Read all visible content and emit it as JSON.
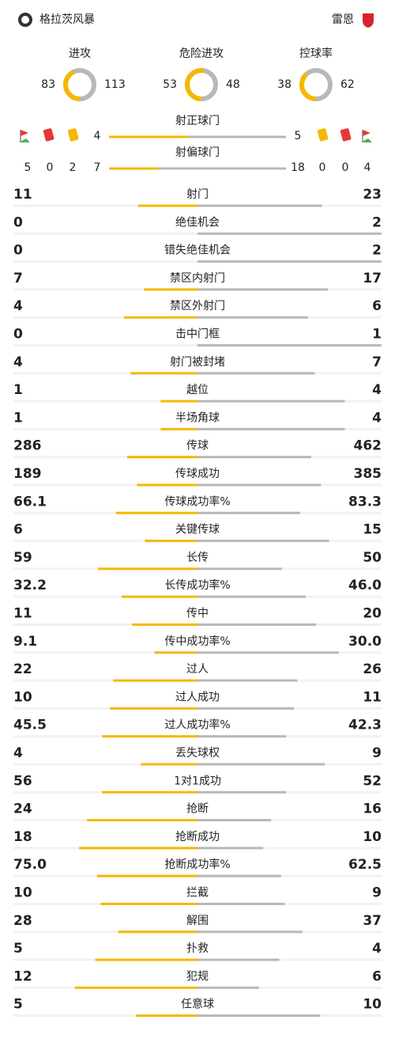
{
  "header": {
    "home": "格拉茨风暴",
    "away": "雷恩"
  },
  "summary": [
    {
      "label": "进攻",
      "home": 83,
      "away": 113
    },
    {
      "label": "危险进攻",
      "home": 53,
      "away": 48
    },
    {
      "label": "控球率",
      "home": 38,
      "away": 62
    }
  ],
  "shots": {
    "on_target_label": "射正球门",
    "off_target_label": "射偏球门",
    "home": {
      "corners": 5,
      "red": 0,
      "yellow": 2,
      "on_target": 4,
      "off_target": 7
    },
    "away": {
      "corners": 4,
      "red": 0,
      "yellow": 0,
      "on_target": 5,
      "off_target": 18
    }
  },
  "stats": [
    {
      "label": "射门",
      "home": "11",
      "away": "23"
    },
    {
      "label": "绝佳机会",
      "home": "0",
      "away": "2"
    },
    {
      "label": "错失绝佳机会",
      "home": "0",
      "away": "2"
    },
    {
      "label": "禁区内射门",
      "home": "7",
      "away": "17"
    },
    {
      "label": "禁区外射门",
      "home": "4",
      "away": "6"
    },
    {
      "label": "击中门框",
      "home": "0",
      "away": "1"
    },
    {
      "label": "射门被封堵",
      "home": "4",
      "away": "7"
    },
    {
      "label": "越位",
      "home": "1",
      "away": "4"
    },
    {
      "label": "半场角球",
      "home": "1",
      "away": "4"
    },
    {
      "label": "传球",
      "home": "286",
      "away": "462"
    },
    {
      "label": "传球成功",
      "home": "189",
      "away": "385"
    },
    {
      "label": "传球成功率%",
      "home": "66.1",
      "away": "83.3"
    },
    {
      "label": "关键传球",
      "home": "6",
      "away": "15"
    },
    {
      "label": "长传",
      "home": "59",
      "away": "50"
    },
    {
      "label": "长传成功率%",
      "home": "32.2",
      "away": "46.0"
    },
    {
      "label": "传中",
      "home": "11",
      "away": "20"
    },
    {
      "label": "传中成功率%",
      "home": "9.1",
      "away": "30.0"
    },
    {
      "label": "过人",
      "home": "22",
      "away": "26"
    },
    {
      "label": "过人成功",
      "home": "10",
      "away": "11"
    },
    {
      "label": "过人成功率%",
      "home": "45.5",
      "away": "42.3"
    },
    {
      "label": "丢失球权",
      "home": "4",
      "away": "9"
    },
    {
      "label": "1对1成功",
      "home": "56",
      "away": "52"
    },
    {
      "label": "抢断",
      "home": "24",
      "away": "16"
    },
    {
      "label": "抢断成功",
      "home": "18",
      "away": "10"
    },
    {
      "label": "抢断成功率%",
      "home": "75.0",
      "away": "62.5"
    },
    {
      "label": "拦截",
      "home": "10",
      "away": "9"
    },
    {
      "label": "解围",
      "home": "28",
      "away": "37"
    },
    {
      "label": "扑救",
      "home": "5",
      "away": "4"
    },
    {
      "label": "犯规",
      "home": "12",
      "away": "6"
    },
    {
      "label": "任意球",
      "home": "5",
      "away": "10"
    }
  ]
}
